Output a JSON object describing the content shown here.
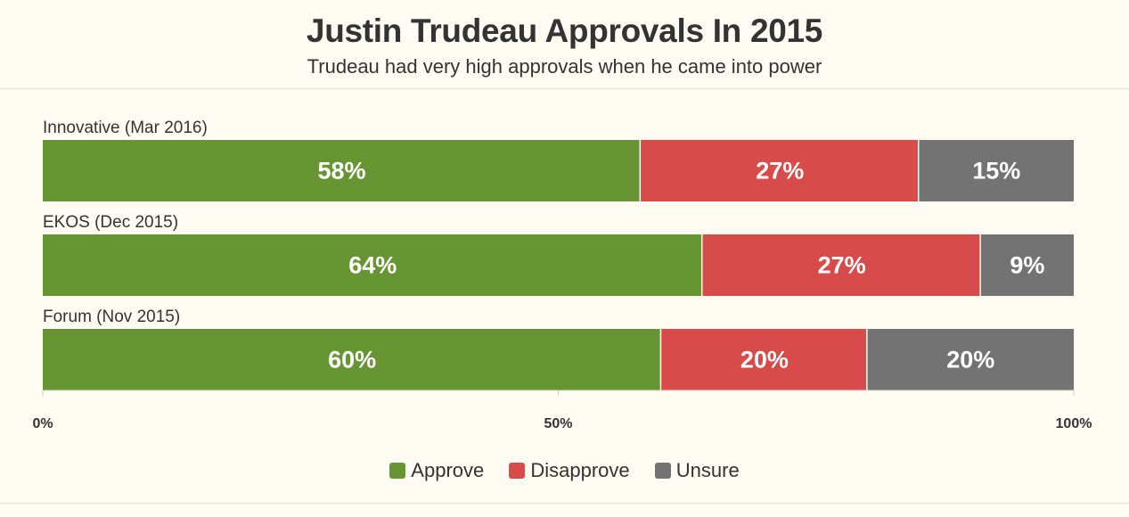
{
  "header": {
    "title": "Justin Trudeau Approvals In 2015",
    "subtitle": "Trudeau had very high approvals when he came into power"
  },
  "colors": {
    "approve": "#679533",
    "disapprove": "#d84b4b",
    "unsure": "#737373",
    "background": "#fefcf3"
  },
  "chart_data": {
    "type": "bar",
    "orientation": "horizontal",
    "stacked": true,
    "categories": [
      "Innovative (Mar 2016)",
      "EKOS (Dec 2015)",
      "Forum (Nov 2015)"
    ],
    "series": [
      {
        "name": "Approve",
        "values": [
          58,
          64,
          60
        ],
        "labels": [
          "58%",
          "64%",
          "60%"
        ]
      },
      {
        "name": "Disapprove",
        "values": [
          27,
          27,
          20
        ],
        "labels": [
          "27%",
          "27%",
          "20%"
        ]
      },
      {
        "name": "Unsure",
        "values": [
          15,
          9,
          20
        ],
        "labels": [
          "15%",
          "9%",
          "20%"
        ]
      }
    ],
    "xlim": [
      0,
      100
    ],
    "xticks": [
      {
        "value": 0,
        "label": "0%"
      },
      {
        "value": 50,
        "label": "50%"
      },
      {
        "value": 100,
        "label": "100%"
      }
    ],
    "legend_position": "bottom",
    "grid": false
  },
  "legend": {
    "items": [
      {
        "label": "Approve",
        "color": "#679533"
      },
      {
        "label": "Disapprove",
        "color": "#d84b4b"
      },
      {
        "label": "Unsure",
        "color": "#737373"
      }
    ]
  }
}
